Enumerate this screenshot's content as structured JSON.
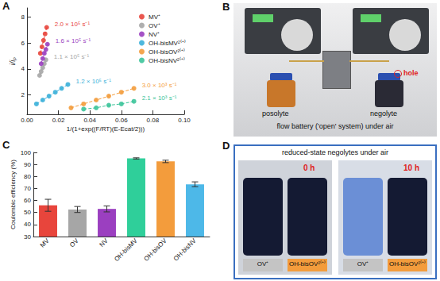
{
  "chart_data": [
    {
      "panel": "A",
      "type": "scatter",
      "x_label": "1/(1+exp((F/RT)(E-Ecat/2)))",
      "y_label": "i/iₚ",
      "xlim": [
        0,
        0.1
      ],
      "xticks": [
        {
          "value": 0,
          "label": "0.00"
        },
        {
          "value": 0.02,
          "label": "0.02"
        },
        {
          "value": 0.04,
          "label": "0.04"
        },
        {
          "value": 0.06,
          "label": "0.06"
        },
        {
          "value": 0.08,
          "label": "0.08"
        },
        {
          "value": 0.1,
          "label": "0.10"
        }
      ],
      "ylim": [
        0.5,
        8.7
      ],
      "yticks": [
        2,
        4,
        6,
        8
      ],
      "legend": "upper right",
      "grid": false,
      "line_style": "dashed",
      "series": [
        {
          "name": "MV⁺",
          "color": "#e8453c",
          "fit_label": "2.0 × 10⁵ s⁻¹",
          "values": [
            [
              0.0085,
              5.2
            ],
            [
              0.0095,
              5.7
            ],
            [
              0.0105,
              6.2
            ],
            [
              0.0115,
              6.7
            ],
            [
              0.0125,
              7.2
            ]
          ]
        },
        {
          "name": "OV⁺",
          "color": "#a6a6a6",
          "fit_label": "1.1 × 10⁵ s⁻¹",
          "values": [
            [
              0.008,
              3.5
            ],
            [
              0.009,
              3.8
            ],
            [
              0.01,
              4.1
            ],
            [
              0.011,
              4.4
            ],
            [
              0.012,
              4.7
            ]
          ]
        },
        {
          "name": "NV⁺",
          "color": "#9b3fc0",
          "fit_label": "1.6 × 10⁵ s⁻¹",
          "values": [
            [
              0.009,
              4.4
            ],
            [
              0.01,
              4.8
            ],
            [
              0.011,
              5.2
            ],
            [
              0.012,
              5.5
            ],
            [
              0.013,
              5.9
            ]
          ]
        },
        {
          "name": "OH-bisMV²⁽⁺⁾",
          "color": "#3bb0d9",
          "fit_label": "1.2 × 10⁵ s⁻¹",
          "values": [
            [
              0.006,
              1.3
            ],
            [
              0.01,
              1.6
            ],
            [
              0.014,
              1.9
            ],
            [
              0.018,
              2.2
            ],
            [
              0.022,
              2.5
            ],
            [
              0.026,
              2.8
            ]
          ]
        },
        {
          "name": "OH-bisOV²⁽⁺⁾",
          "color": "#f39c3c",
          "fit_label": "3.0 × 10³ s⁻¹",
          "values": [
            [
              0.028,
              1.0
            ],
            [
              0.036,
              1.3
            ],
            [
              0.044,
              1.6
            ],
            [
              0.052,
              1.9
            ],
            [
              0.06,
              2.2
            ],
            [
              0.068,
              2.5
            ]
          ]
        },
        {
          "name": "OH-bisNV²⁽⁺⁾",
          "color": "#3cc49a",
          "fit_label": "2.1 × 10³ s⁻¹",
          "values": [
            [
              0.036,
              0.9
            ],
            [
              0.044,
              1.0
            ],
            [
              0.052,
              1.2
            ],
            [
              0.06,
              1.3
            ],
            [
              0.068,
              1.5
            ]
          ]
        }
      ]
    },
    {
      "panel": "C",
      "type": "bar",
      "y_label": "Coulombic efficiency (%)",
      "categories": [
        "MV",
        "OV",
        "NV",
        "OH-bisMV",
        "OH-bisOV",
        "OH-bisNV"
      ],
      "values": [
        56,
        52.5,
        53,
        95,
        92.5,
        73.5
      ],
      "errors": [
        5,
        2.5,
        2.5,
        0.5,
        1,
        2
      ],
      "colors": [
        "#e8453c",
        "#a6a6a6",
        "#9b3fc0",
        "#2fcf9a",
        "#f39c3c",
        "#4db8e8"
      ],
      "ylim": [
        30,
        100
      ],
      "yticks": [
        30,
        40,
        50,
        60,
        70,
        80,
        90,
        100
      ],
      "grid": false
    }
  ],
  "photos": [
    {
      "panel": "B",
      "left_label": "posolyte",
      "right_label": "negolyte",
      "callout": "hole",
      "caption": "flow battery ('open' system) under air"
    },
    {
      "panel": "D",
      "title": "reduced-state negolytes under air",
      "frames": [
        {
          "time": "0 h",
          "samples": [
            "OV⁺",
            "OH-bisOV²⁽⁺⁾"
          ]
        },
        {
          "time": "10 h",
          "samples": [
            "OV⁺",
            "OH-bisOV²⁽⁺⁾"
          ]
        }
      ]
    }
  ]
}
